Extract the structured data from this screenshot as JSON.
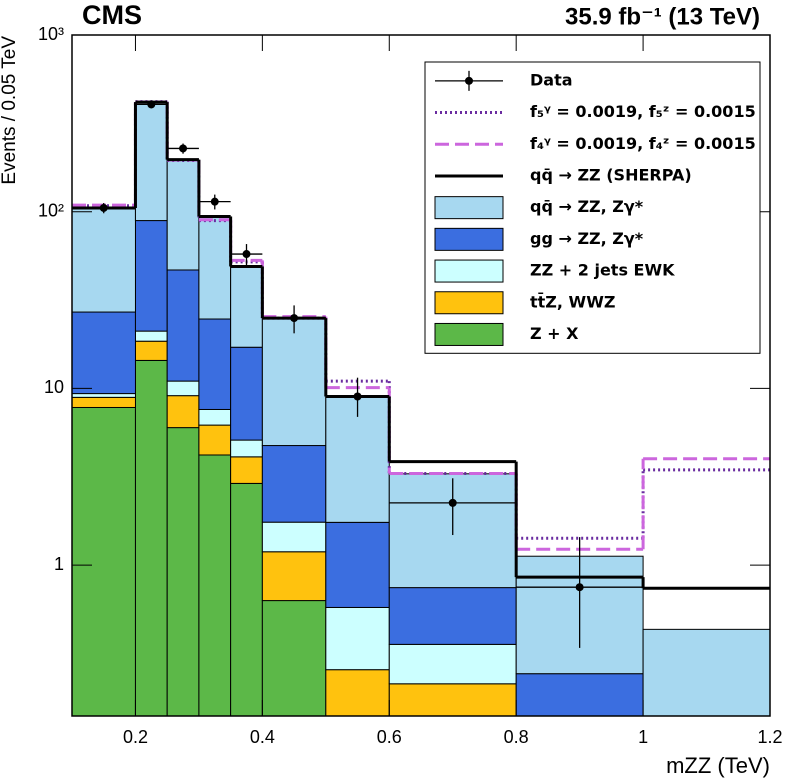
{
  "chart_data": {
    "type": "stacked_histogram",
    "title": "CMS",
    "subtitle": "35.9 fb⁻¹ (13 TeV)",
    "x_label": "mZZ (TeV)",
    "y_label": "Events / 0.05 TeV",
    "log_y": true,
    "bins": [
      0.1,
      0.2,
      0.25,
      0.3,
      0.35,
      0.4,
      0.5,
      0.6,
      0.8,
      1.0,
      1.2
    ],
    "xlim": [
      0.1,
      1.2
    ],
    "xticks": [
      0.2,
      0.4,
      0.6,
      0.8,
      1,
      1.2
    ],
    "ylim": [
      0.14,
      1000
    ],
    "yticks": [
      1,
      10,
      {
        "value": 100,
        "label": "10²"
      },
      {
        "value": 1000,
        "label": "10³"
      }
    ],
    "legend": "upper right",
    "data": {
      "name": "Data",
      "color": "#000000",
      "values": [
        105,
        405,
        228,
        114,
        57.6,
        25,
        9.0,
        2.25,
        0.75,
        null
      ],
      "err_low": [
        7,
        20,
        15,
        11,
        8,
        4.5,
        2.1,
        0.77,
        0.41,
        null
      ],
      "err_high": [
        7,
        20,
        15,
        11,
        8,
        4.5,
        2.5,
        0.85,
        0.69,
        null
      ]
    },
    "lines": [
      {
        "name": "f₅ᵞ = 0.0019, f₅ᶻ = 0.0015",
        "color": "#6a2ca0",
        "style": "dotted",
        "values": [
          108,
          420,
          195,
          89,
          52,
          25,
          11,
          3.3,
          1.42,
          3.46
        ]
      },
      {
        "name": "f₄ᵞ = 0.0019, f₄ᶻ = 0.0015",
        "color": "#cc66dd",
        "style": "dashed",
        "values": [
          109,
          418,
          196,
          90,
          53,
          25.5,
          10.1,
          3.3,
          1.23,
          4.0
        ]
      },
      {
        "name": "qq̄ → ZZ (SHERPA)",
        "color": "#000000",
        "style": "solid",
        "values": [
          105,
          417,
          197,
          94,
          49,
          25,
          9,
          3.85,
          0.855,
          0.74
        ]
      }
    ],
    "series": [
      {
        "name": "Z + X",
        "color": "#5cb848",
        "values": [
          7.8,
          14.4,
          6.0,
          4.2,
          2.9,
          0.63,
          0,
          0,
          0,
          0
        ]
      },
      {
        "name": "tt̄Z, WWZ",
        "color": "#ffc20e",
        "values": [
          1.1,
          4.1,
          3.1,
          2.0,
          1.2,
          0.56,
          0.256,
          0.213,
          0,
          0
        ]
      },
      {
        "name": "ZZ + 2 jets EWK",
        "color": "#ccffff",
        "values": [
          0.45,
          2.6,
          1.9,
          1.4,
          1.0,
          0.56,
          0.32,
          0.143,
          0,
          0
        ]
      },
      {
        "name": "gg → ZZ, Zγ*",
        "color": "#3b6ee0",
        "values": [
          17.7,
          68,
          35.8,
          17.1,
          12,
          3.0,
          1.17,
          0.39,
          0.243,
          0
        ]
      },
      {
        "name": "qq̄ → ZZ, Zγ*",
        "color": "#a7d8f0",
        "values": [
          77,
          316,
          149,
          68,
          32,
          20,
          7.15,
          2.54,
          0.88,
          0.433
        ]
      }
    ]
  }
}
